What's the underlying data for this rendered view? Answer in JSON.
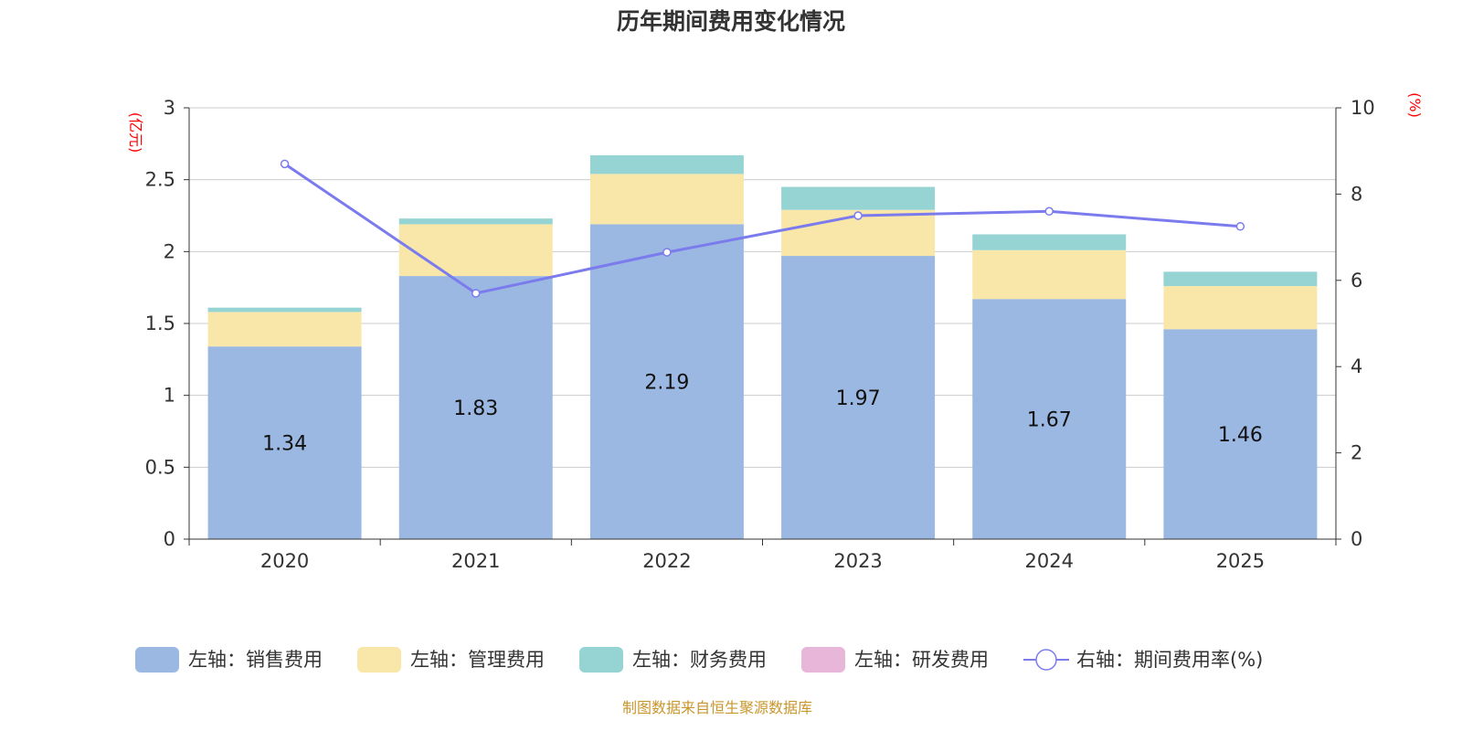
{
  "chart_data": {
    "type": "bar",
    "title": "历年期间费用变化情况",
    "categories": [
      "2020",
      "2021",
      "2022",
      "2023",
      "2024",
      "2025"
    ],
    "left_axis": {
      "unit": "(亿元)",
      "ylim": [
        0,
        3
      ],
      "ticks": [
        "0",
        "0.5",
        "1",
        "1.5",
        "2",
        "2.5",
        "3"
      ],
      "tick_values": [
        0,
        0.5,
        1,
        1.5,
        2,
        2.5,
        3
      ]
    },
    "right_axis": {
      "unit": "(%)",
      "ylim": [
        0,
        10
      ],
      "ticks": [
        "0",
        "2",
        "4",
        "6",
        "8",
        "10"
      ],
      "tick_values": [
        0,
        2,
        4,
        6,
        8,
        10
      ]
    },
    "series": [
      {
        "name": "左轴：销售费用",
        "stack": true,
        "axis": "left",
        "color": "#9bb8e2",
        "values": [
          1.34,
          1.83,
          2.19,
          1.97,
          1.67,
          1.46
        ],
        "labels": [
          "1.34",
          "1.83",
          "2.19",
          "1.97",
          "1.67",
          "1.46"
        ]
      },
      {
        "name": "左轴：管理费用",
        "stack": true,
        "axis": "left",
        "color": "#f8e7a9",
        "values": [
          0.24,
          0.36,
          0.35,
          0.32,
          0.34,
          0.3
        ]
      },
      {
        "name": "左轴：财务费用",
        "stack": true,
        "axis": "left",
        "color": "#96d4d4",
        "values": [
          0.03,
          0.04,
          0.13,
          0.16,
          0.11,
          0.1
        ]
      },
      {
        "name": "左轴：研发费用",
        "stack": true,
        "axis": "left",
        "color": "#e8b6d8",
        "values": [
          0,
          0,
          0,
          0,
          0,
          0
        ]
      },
      {
        "name": "右轴：期间费用率(%)",
        "type": "line",
        "axis": "right",
        "color": "#7b7bee",
        "values": [
          8.7,
          5.7,
          6.65,
          7.5,
          7.6,
          7.25
        ]
      }
    ],
    "source": "制图数据来自恒生聚源数据库"
  }
}
